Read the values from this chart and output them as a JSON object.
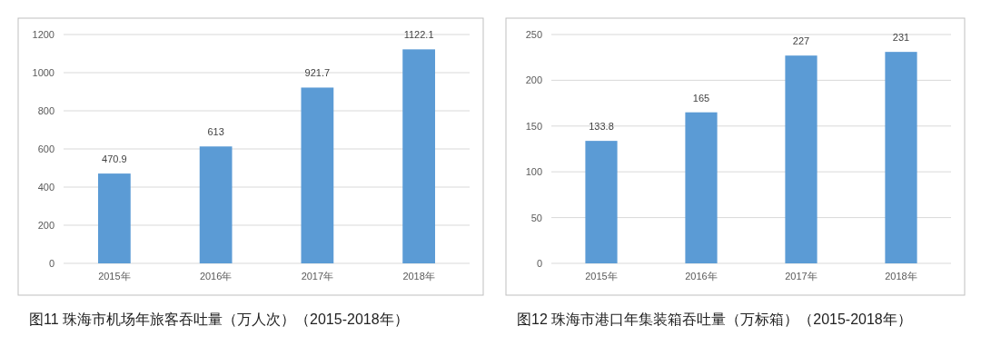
{
  "chart_data": [
    {
      "type": "bar",
      "title": "图11 珠海市机场年旅客吞吐量（万人次）（2015-2018年）",
      "categories": [
        "2015年",
        "2016年",
        "2017年",
        "2018年"
      ],
      "values": [
        470.9,
        613,
        921.7,
        1122.1
      ],
      "color": "#5b9bd5",
      "ylim": [
        0,
        1200
      ],
      "yticks": [
        0,
        200,
        400,
        600,
        800,
        1000,
        1200
      ],
      "grid": "y",
      "data_labels": true
    },
    {
      "type": "bar",
      "title": "图12 珠海市港口年集装箱吞吐量（万标箱）（2015-2018年）",
      "categories": [
        "2015年",
        "2016年",
        "2017年",
        "2018年"
      ],
      "values": [
        133.8,
        165,
        227,
        231
      ],
      "color": "#5b9bd5",
      "ylim": [
        0,
        250
      ],
      "yticks": [
        0,
        50,
        100,
        150,
        200,
        250
      ],
      "grid": "y",
      "data_labels": true
    }
  ]
}
